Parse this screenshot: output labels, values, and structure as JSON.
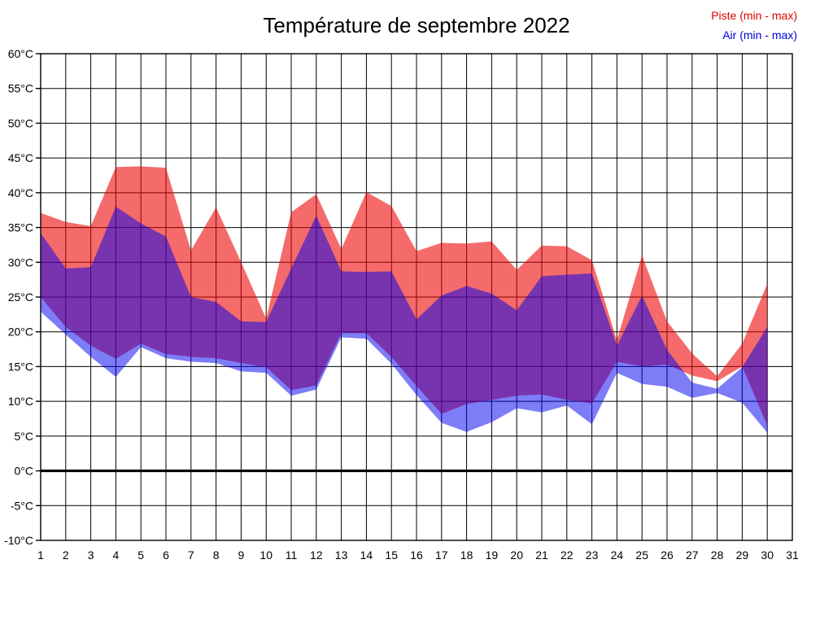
{
  "title": "Température de septembre 2022",
  "legend": {
    "piste": {
      "label": "Piste (min - max)",
      "color": "#dd0000"
    },
    "air": {
      "label": "Air (min - max)",
      "color": "#0000dd"
    }
  },
  "chart_data": {
    "type": "area",
    "title": "Température de septembre 2022",
    "x_unit": "day of September 2022",
    "x": [
      1,
      2,
      3,
      4,
      5,
      6,
      7,
      8,
      9,
      10,
      11,
      12,
      13,
      14,
      15,
      16,
      17,
      18,
      19,
      20,
      21,
      22,
      23,
      24,
      25,
      26,
      27,
      28,
      29,
      30
    ],
    "x_axis_ticks": [
      "1",
      "2",
      "3",
      "4",
      "5",
      "6",
      "7",
      "8",
      "9",
      "10",
      "11",
      "12",
      "13",
      "14",
      "15",
      "16",
      "17",
      "18",
      "19",
      "20",
      "21",
      "22",
      "23",
      "24",
      "25",
      "26",
      "27",
      "28",
      "29",
      "30",
      "31"
    ],
    "y_axis_tick_labels": [
      "60°C",
      "55°C",
      "50°C",
      "45°C",
      "40°C",
      "35°C",
      "30°C",
      "25°C",
      "20°C",
      "15°C",
      "10°C",
      "5°C",
      "0°C",
      "-5°C",
      "-10°C"
    ],
    "ylim": [
      -10,
      60
    ],
    "y_step": 5,
    "grid": true,
    "zero_line": true,
    "legend_position": "top-right",
    "series": [
      {
        "name": "Piste (min - max)",
        "role": "piste",
        "fill": "#ee0000",
        "fill_opacity": 0.58,
        "min": [
          25,
          20.7,
          18,
          16.1,
          18.3,
          16.8,
          16.4,
          16.2,
          15.5,
          14.9,
          11.6,
          12.3,
          19.8,
          19.8,
          16.4,
          12.2,
          8.2,
          9.6,
          10.2,
          10.8,
          11,
          10.2,
          9.7,
          15.7,
          15,
          15.3,
          13.7,
          12.9,
          15,
          6.5
        ],
        "max": [
          37.1,
          35.8,
          35.2,
          43.7,
          43.8,
          43.6,
          31.7,
          37.9,
          30,
          21.9,
          37.2,
          39.8,
          31.9,
          40.1,
          38.1,
          31.6,
          32.8,
          32.7,
          33,
          28.9,
          32.4,
          32.3,
          30.3,
          18.8,
          31,
          21.5,
          16.9,
          13.6,
          18.3,
          26.9
        ]
      },
      {
        "name": "Air (min - max)",
        "role": "air",
        "fill": "#0000f0",
        "fill_opacity": 0.51,
        "min": [
          22.9,
          19.6,
          16.4,
          13.5,
          17.8,
          16.2,
          15.7,
          15.5,
          14.3,
          14.1,
          10.8,
          11.7,
          19.2,
          19,
          15.4,
          10.9,
          6.9,
          5.6,
          7,
          9,
          8.4,
          9.4,
          6.7,
          14.1,
          12.5,
          12.1,
          10.5,
          11.2,
          9.8,
          5.5
        ],
        "max": [
          34.2,
          29.1,
          29.3,
          38,
          35.6,
          33.7,
          25,
          24.3,
          21.5,
          21.4,
          29.1,
          36.7,
          28.7,
          28.6,
          28.7,
          21.8,
          25.2,
          26.6,
          25.5,
          23.1,
          28,
          28.2,
          28.4,
          18,
          25.2,
          17.4,
          12.7,
          11.8,
          14.9,
          20.7
        ]
      }
    ]
  }
}
